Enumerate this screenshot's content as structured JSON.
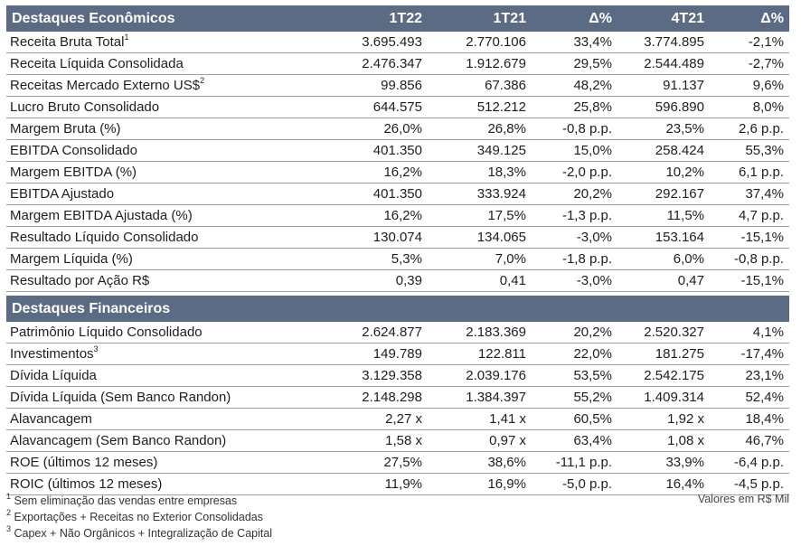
{
  "section1": {
    "title": "Destaques Econômicos",
    "columns": [
      "1T22",
      "1T21",
      "Δ%",
      "4T21",
      "Δ%"
    ],
    "rows": [
      {
        "label": "Receita Bruta Total",
        "sup": "1",
        "values": [
          "3.695.493",
          "2.770.106",
          "33,4%",
          "3.774.895",
          "-2,1%"
        ]
      },
      {
        "label": "Receita Líquida Consolidada",
        "sup": "",
        "values": [
          "2.476.347",
          "1.912.679",
          "29,5%",
          "2.544.489",
          "-2,7%"
        ]
      },
      {
        "label": "Receitas Mercado Externo US$",
        "sup": "2",
        "values": [
          "99.856",
          "67.386",
          "48,2%",
          "91.137",
          "9,6%"
        ]
      },
      {
        "label": "Lucro Bruto Consolidado",
        "sup": "",
        "values": [
          "644.575",
          "512.212",
          "25,8%",
          "596.890",
          "8,0%"
        ]
      },
      {
        "label": "Margem Bruta (%)",
        "sup": "",
        "values": [
          "26,0%",
          "26,8%",
          "-0,8 p.p.",
          "23,5%",
          "2,6 p.p."
        ]
      },
      {
        "label": "EBITDA Consolidado",
        "sup": "",
        "values": [
          "401.350",
          "349.125",
          "15,0%",
          "258.424",
          "55,3%"
        ]
      },
      {
        "label": "Margem EBITDA (%)",
        "sup": "",
        "values": [
          "16,2%",
          "18,3%",
          "-2,0 p.p.",
          "10,2%",
          "6,1 p.p."
        ]
      },
      {
        "label": "EBITDA Ajustado",
        "sup": "",
        "values": [
          "401.350",
          "333.924",
          "20,2%",
          "292.167",
          "37,4%"
        ]
      },
      {
        "label": "Margem EBITDA Ajustada (%)",
        "sup": "",
        "values": [
          "16,2%",
          "17,5%",
          "-1,3 p.p.",
          "11,5%",
          "4,7 p.p."
        ]
      },
      {
        "label": "Resultado Líquido Consolidado",
        "sup": "",
        "values": [
          "130.074",
          "134.065",
          "-3,0%",
          "153.164",
          "-15,1%"
        ]
      },
      {
        "label": "Margem Líquida (%)",
        "sup": "",
        "values": [
          "5,3%",
          "7,0%",
          "-1,8 p.p.",
          "6,0%",
          "-0,8 p.p."
        ]
      },
      {
        "label": "Resultado por Ação R$",
        "sup": "",
        "values": [
          "0,39",
          "0,41",
          "-3,0%",
          "0,47",
          "-15,1%"
        ]
      }
    ]
  },
  "section2": {
    "title": "Destaques Financeiros",
    "rows": [
      {
        "label": "Patrimônio Líquido Consolidado",
        "sup": "",
        "values": [
          "2.624.877",
          "2.183.369",
          "20,2%",
          "2.520.327",
          "4,1%"
        ]
      },
      {
        "label": "Investimentos",
        "sup": "3",
        "values": [
          "149.789",
          "122.811",
          "22,0%",
          "181.275",
          "-17,4%"
        ]
      },
      {
        "label": "Dívida Líquida",
        "sup": "",
        "values": [
          "3.129.358",
          "2.039.176",
          "53,5%",
          "2.542.175",
          "23,1%"
        ]
      },
      {
        "label": "Dívida Líquida (Sem Banco Randon)",
        "sup": "",
        "values": [
          "2.148.298",
          "1.384.397",
          "55,2%",
          "1.409.314",
          "52,4%"
        ]
      },
      {
        "label": "Alavancagem",
        "sup": "",
        "values": [
          "2,27 x",
          "1,41 x",
          "60,5%",
          "1,92 x",
          "18,4%"
        ]
      },
      {
        "label": "Alavancagem (Sem Banco Randon)",
        "sup": "",
        "values": [
          "1,58 x",
          "0,97 x",
          "63,4%",
          "1,08 x",
          "46,7%"
        ]
      },
      {
        "label": "ROE (últimos 12 meses)",
        "sup": "",
        "values": [
          "27,5%",
          "38,6%",
          "-11,1 p.p.",
          "33,9%",
          "-6,4 p.p."
        ]
      },
      {
        "label": "ROIC (últimos 12 meses)",
        "sup": "",
        "values": [
          "11,9%",
          "16,9%",
          "-5,0 p.p.",
          "16,4%",
          "-4,5 p.p."
        ]
      }
    ]
  },
  "footnotes": [
    {
      "sup": "1",
      "text": "Sem eliminação das vendas entre empresas"
    },
    {
      "sup": "2",
      "text": "Exportações + Receitas no Exterior Consolidadas"
    },
    {
      "sup": "3",
      "text": "Capex + Não Orgânicos + Integralização de Capital"
    }
  ],
  "unit_note": "Valores em R$ Mil"
}
